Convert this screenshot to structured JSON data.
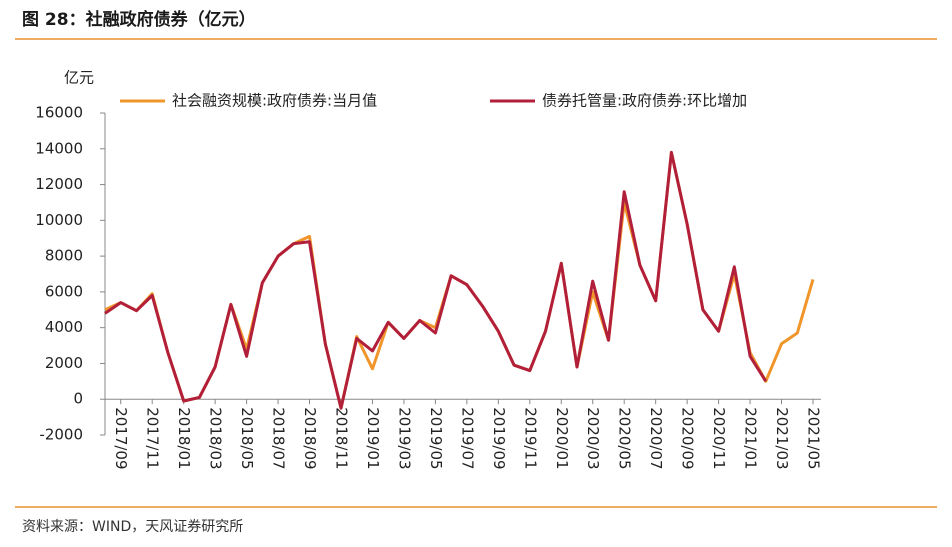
{
  "chart_data": {
    "type": "line",
    "title": "图 28：社融政府债券（亿元）",
    "y_axis_label": "亿元",
    "source": "资料来源：WIND，天风证券研究所",
    "categories": [
      null,
      "2017/09",
      null,
      "2017/11",
      null,
      "2018/01",
      null,
      "2018/03",
      null,
      "2018/05",
      null,
      "2018/07",
      null,
      "2018/09",
      null,
      "2018/11",
      null,
      "2019/01",
      null,
      "2019/03",
      null,
      "2019/05",
      null,
      "2019/07",
      null,
      "2019/09",
      null,
      "2019/11",
      null,
      "2020/01",
      null,
      "2020/03",
      null,
      "2020/05",
      null,
      "2020/07",
      null,
      "2020/09",
      null,
      "2020/11",
      null,
      "2021/01",
      null,
      "2021/03",
      null,
      "2021/05"
    ],
    "series": [
      {
        "name": "社会融资规模:政府债券:当月值",
        "color": "#f0952a",
        "values": [
          5000,
          5400,
          4950,
          5900,
          2600,
          -100,
          100,
          1800,
          5300,
          2800,
          6500,
          8000,
          8700,
          9100,
          3100,
          -500,
          3500,
          1700,
          4300,
          3400,
          4400,
          4000,
          6900,
          6400,
          5200,
          3800,
          1900,
          1600,
          3800,
          7600,
          1800,
          6000,
          3300,
          11000,
          7500,
          5500,
          13800,
          9800,
          5000,
          3800,
          7000,
          2600,
          1000,
          3100,
          3700,
          6700
        ]
      },
      {
        "name": "债券托管量:政府债券:环比增加",
        "color": "#b21f3a",
        "values": [
          4800,
          5400,
          4950,
          5800,
          2600,
          -100,
          100,
          1800,
          5300,
          2400,
          6500,
          8000,
          8700,
          8800,
          3100,
          -500,
          3400,
          2700,
          4300,
          3400,
          4400,
          3700,
          6900,
          6400,
          5200,
          3800,
          1900,
          1600,
          3800,
          7600,
          1800,
          6600,
          3300,
          11600,
          7500,
          5500,
          13800,
          9800,
          5000,
          3800,
          7400,
          2400,
          1000,
          null,
          null,
          null
        ]
      }
    ],
    "ylim": [
      -2000,
      16000
    ],
    "yticks": [
      -2000,
      0,
      2000,
      4000,
      6000,
      8000,
      10000,
      12000,
      14000,
      16000
    ],
    "legend": "top"
  }
}
